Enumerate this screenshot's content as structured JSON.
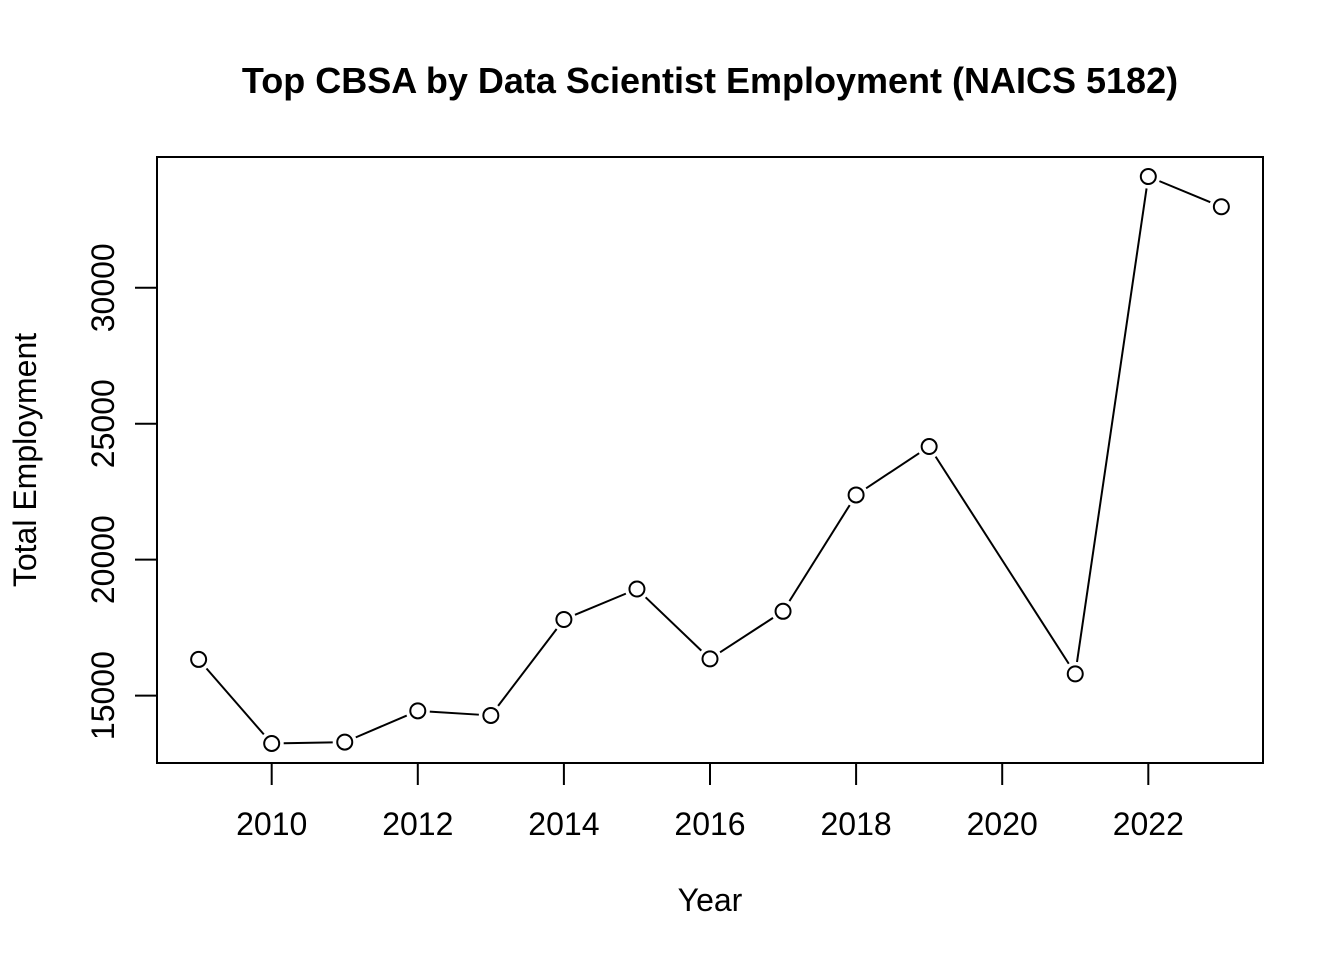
{
  "chart_data": {
    "type": "line",
    "title": "Top CBSA by Data Scientist Employment (NAICS 5182)",
    "xlabel": "Year",
    "ylabel": "Total Employment",
    "x": [
      2009,
      2010,
      2011,
      2012,
      2013,
      2014,
      2015,
      2016,
      2017,
      2018,
      2019,
      2021,
      2022,
      2023
    ],
    "series": [
      {
        "values": [
          16330,
          13240,
          13290,
          14440,
          14270,
          17800,
          18920,
          16350,
          18100,
          22380,
          24160,
          15800,
          34090,
          32980
        ]
      }
    ],
    "xticks": [
      "2010",
      "2012",
      "2014",
      "2016",
      "2018",
      "2020",
      "2022"
    ],
    "yticks": [
      "15000",
      "20000",
      "25000",
      "30000"
    ],
    "xlim": [
      2008.43,
      2023.57
    ],
    "ylim": [
      12521,
      34809
    ],
    "grid": false,
    "marker": "open-circle",
    "line_color": "#000000",
    "marker_fill": "#ffffff"
  }
}
